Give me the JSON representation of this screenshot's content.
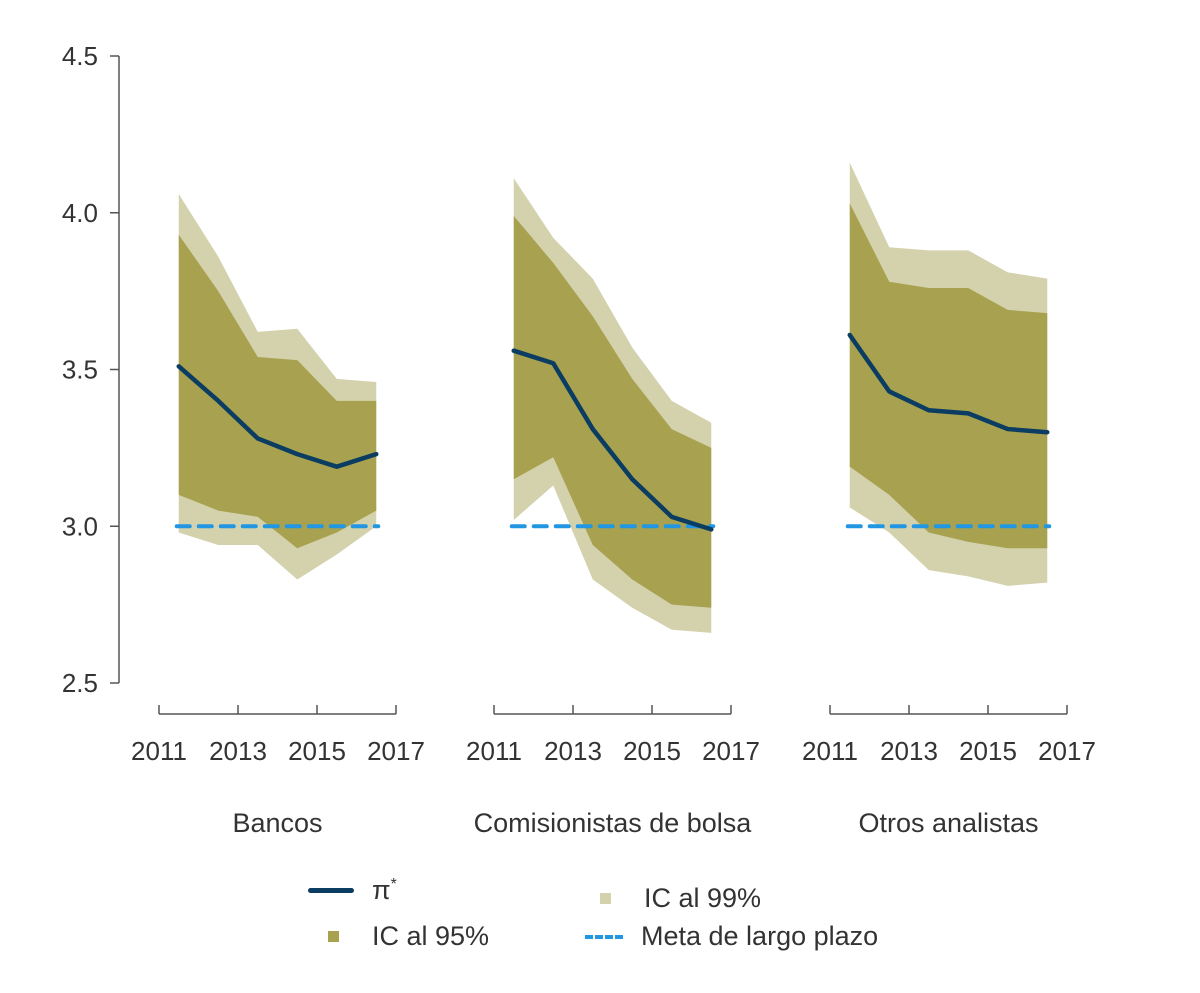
{
  "colors": {
    "line": "#0b3c61",
    "ci95": "#a8a250",
    "ci99": "#d3d2ad",
    "target": "#2196e3",
    "axis": "#555555"
  },
  "chart_data": {
    "type": "area",
    "title": "",
    "ylabel": "",
    "ylim": [
      2.5,
      4.5
    ],
    "yticks": [
      "2.5",
      "3.0",
      "3.5",
      "4.0",
      "4.5"
    ],
    "ytick_values": [
      2.5,
      3.0,
      3.5,
      4.0,
      4.5
    ],
    "xlim": [
      2011,
      2017
    ],
    "xticks": [
      "2011",
      "2013",
      "2015",
      "2017"
    ],
    "xtick_values": [
      2011,
      2013,
      2015,
      2017
    ],
    "x": [
      2011.5,
      2012.5,
      2013.5,
      2014.5,
      2015.5,
      2016.5
    ],
    "target_value": 3.0,
    "grid": false,
    "legend_position": "bottom",
    "panels": [
      {
        "name": "Bancos",
        "pi_star": [
          3.51,
          3.4,
          3.28,
          3.23,
          3.19,
          3.23
        ],
        "ci95_upper": [
          3.93,
          3.75,
          3.54,
          3.53,
          3.4,
          3.4
        ],
        "ci95_lower": [
          3.1,
          3.05,
          3.03,
          2.93,
          2.98,
          3.05
        ],
        "ci99_upper": [
          4.06,
          3.86,
          3.62,
          3.63,
          3.47,
          3.46
        ],
        "ci99_lower": [
          2.98,
          2.94,
          2.94,
          2.83,
          2.91,
          3.0
        ]
      },
      {
        "name": "Comisionistas de bolsa",
        "pi_star": [
          3.56,
          3.52,
          3.31,
          3.15,
          3.03,
          2.99
        ],
        "ci95_upper": [
          3.99,
          3.84,
          3.67,
          3.47,
          3.31,
          3.25
        ],
        "ci95_lower": [
          3.15,
          3.22,
          2.94,
          2.83,
          2.75,
          2.74
        ],
        "ci99_upper": [
          4.11,
          3.92,
          3.79,
          3.57,
          3.4,
          3.33
        ],
        "ci99_lower": [
          3.02,
          3.13,
          2.83,
          2.74,
          2.67,
          2.66
        ]
      },
      {
        "name": "Otros analistas",
        "pi_star": [
          3.61,
          3.43,
          3.37,
          3.36,
          3.31,
          3.3
        ],
        "ci95_upper": [
          4.03,
          3.78,
          3.76,
          3.76,
          3.69,
          3.68
        ],
        "ci95_lower": [
          3.19,
          3.1,
          2.98,
          2.95,
          2.93,
          2.93
        ],
        "ci99_upper": [
          4.16,
          3.89,
          3.88,
          3.88,
          3.81,
          3.79
        ],
        "ci99_lower": [
          3.06,
          2.98,
          2.86,
          2.84,
          2.81,
          2.82
        ]
      }
    ],
    "legend": [
      {
        "key": "pi_star",
        "label": "π",
        "superscript": "*",
        "symbol": "line"
      },
      {
        "key": "ci99",
        "label": "IC al 99%",
        "symbol": "box"
      },
      {
        "key": "ci95",
        "label": "IC al 95%",
        "symbol": "box"
      },
      {
        "key": "target",
        "label": "Meta de largo plazo",
        "symbol": "dashed-line"
      }
    ]
  }
}
